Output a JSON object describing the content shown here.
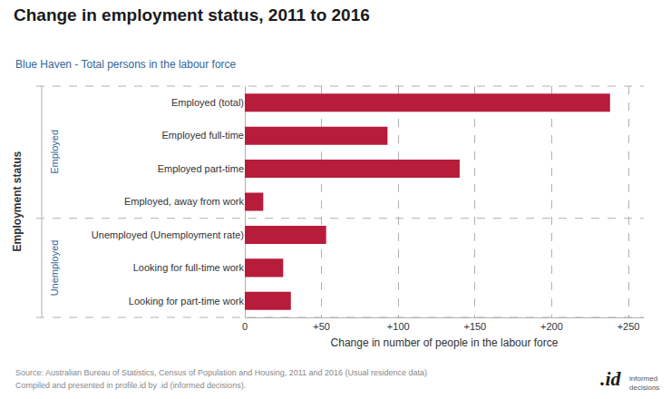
{
  "chart_data": {
    "type": "bar",
    "orientation": "horizontal",
    "title": "Change in employment status, 2011 to 2016",
    "subtitle": "Blue Haven - Total persons in the labour force",
    "xlabel": "Change in number of people in the labour force",
    "ylabel": "Employment status",
    "categories": [
      "Employed (total)",
      "Employed full-time",
      "Employed part-time",
      "Employed, away from work",
      "Unemployed (Unemployment rate)",
      "Looking for full-time work",
      "Looking for part-time work"
    ],
    "values": [
      238,
      93,
      140,
      12,
      53,
      25,
      30
    ],
    "color": "#b71c3a",
    "xlim": [
      0,
      260
    ],
    "xticks": [
      0,
      {
        "value": 50,
        "label": "+50"
      },
      {
        "value": 100,
        "label": "+100"
      },
      {
        "value": 150,
        "label": "+150"
      },
      {
        "value": 200,
        "label": "+200"
      },
      {
        "value": 250,
        "label": "+250"
      }
    ],
    "grid": true,
    "groups": [
      {
        "label": "Employed",
        "categories": [
          "Employed (total)",
          "Employed full-time",
          "Employed part-time",
          "Employed, away from work"
        ]
      },
      {
        "label": "Unemployed",
        "categories": [
          "Unemployed (Unemployment rate)",
          "Looking for full-time work",
          "Looking for part-time work"
        ]
      }
    ],
    "annotations": [
      "Source: Australian Bureau of Statistics, Census of Population and Housing, 2011 and 2016 (Usual residence data)",
      "Compiled and presented in profile.id by .id (informed decisions).",
      ".id",
      "informed\ndecisions"
    ]
  }
}
